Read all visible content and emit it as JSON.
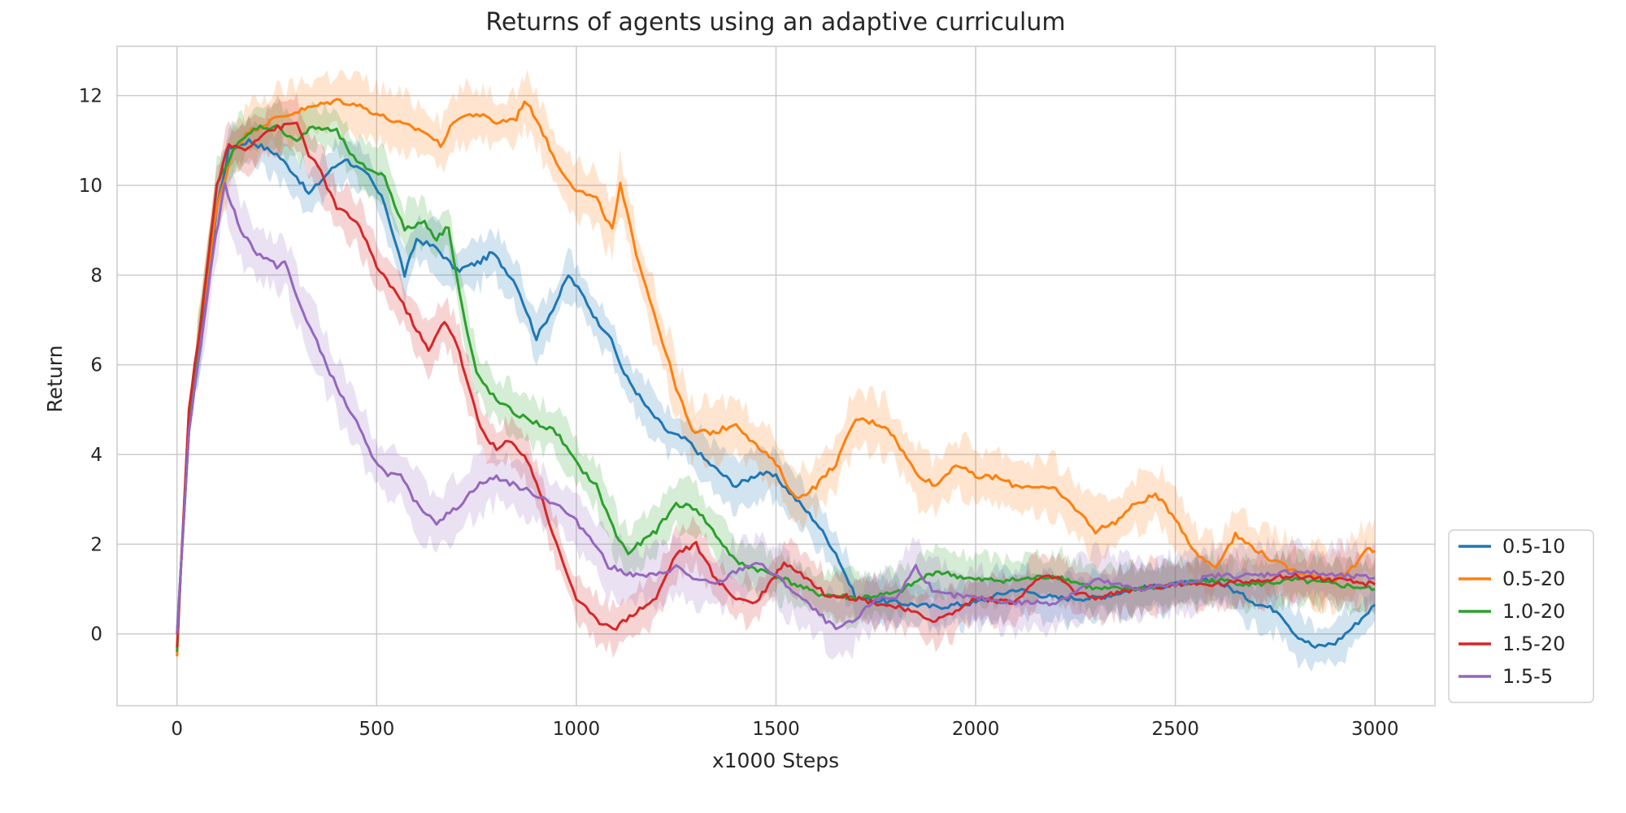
{
  "chart_data": {
    "type": "line",
    "title": "Returns of agents using an adaptive curriculum",
    "xlabel": "x1000 Steps",
    "ylabel": "Return",
    "xlim": [
      -150,
      3150
    ],
    "ylim": [
      -1.6,
      13.1
    ],
    "xticks": [
      0,
      500,
      1000,
      1500,
      2000,
      2500,
      3000
    ],
    "yticks": [
      0,
      2,
      4,
      6,
      8,
      10,
      12
    ],
    "grid": true,
    "legend_position": "lower-right-outside",
    "series": [
      {
        "name": "0.5-10",
        "color": "#1f77b4",
        "band": 0.5,
        "points": [
          [
            0,
            0
          ],
          [
            10,
            1.5
          ],
          [
            30,
            4.5
          ],
          [
            60,
            6.5
          ],
          [
            100,
            9.5
          ],
          [
            130,
            10.8
          ],
          [
            180,
            11.0
          ],
          [
            250,
            10.7
          ],
          [
            300,
            10.2
          ],
          [
            330,
            9.8
          ],
          [
            380,
            10.3
          ],
          [
            420,
            10.6
          ],
          [
            480,
            10.2
          ],
          [
            520,
            9.6
          ],
          [
            570,
            8.0
          ],
          [
            600,
            8.8
          ],
          [
            650,
            8.6
          ],
          [
            700,
            8.1
          ],
          [
            760,
            8.3
          ],
          [
            790,
            8.5
          ],
          [
            850,
            7.8
          ],
          [
            900,
            6.6
          ],
          [
            950,
            7.4
          ],
          [
            980,
            8.0
          ],
          [
            1020,
            7.5
          ],
          [
            1050,
            7.0
          ],
          [
            1080,
            6.7
          ],
          [
            1120,
            5.8
          ],
          [
            1180,
            5.0
          ],
          [
            1230,
            4.5
          ],
          [
            1280,
            4.3
          ],
          [
            1320,
            3.9
          ],
          [
            1400,
            3.3
          ],
          [
            1460,
            3.6
          ],
          [
            1500,
            3.5
          ],
          [
            1550,
            3.0
          ],
          [
            1600,
            2.5
          ],
          [
            1650,
            1.8
          ],
          [
            1700,
            0.8
          ],
          [
            1800,
            0.7
          ],
          [
            1900,
            0.6
          ],
          [
            2000,
            0.7
          ],
          [
            2100,
            1.0
          ],
          [
            2200,
            0.8
          ],
          [
            2300,
            0.8
          ],
          [
            2400,
            1.0
          ],
          [
            2500,
            1.1
          ],
          [
            2600,
            1.2
          ],
          [
            2700,
            0.7
          ],
          [
            2760,
            0.5
          ],
          [
            2800,
            0.0
          ],
          [
            2850,
            -0.3
          ],
          [
            2900,
            -0.2
          ],
          [
            2950,
            0.2
          ],
          [
            3000,
            0.65
          ]
        ]
      },
      {
        "name": "0.5-20",
        "color": "#ff7f0e",
        "band": 0.6,
        "points": [
          [
            0,
            -0.5
          ],
          [
            10,
            1.5
          ],
          [
            30,
            5
          ],
          [
            60,
            7
          ],
          [
            100,
            9.5
          ],
          [
            140,
            10.8
          ],
          [
            180,
            11.2
          ],
          [
            250,
            11.5
          ],
          [
            320,
            11.7
          ],
          [
            400,
            11.9
          ],
          [
            450,
            11.8
          ],
          [
            500,
            11.6
          ],
          [
            550,
            11.4
          ],
          [
            620,
            11.2
          ],
          [
            660,
            10.9
          ],
          [
            700,
            11.5
          ],
          [
            750,
            11.6
          ],
          [
            800,
            11.4
          ],
          [
            850,
            11.5
          ],
          [
            870,
            11.9
          ],
          [
            900,
            11.5
          ],
          [
            950,
            10.5
          ],
          [
            1000,
            9.9
          ],
          [
            1050,
            9.7
          ],
          [
            1090,
            9.0
          ],
          [
            1110,
            10.0
          ],
          [
            1150,
            8.5
          ],
          [
            1200,
            7.0
          ],
          [
            1250,
            5.5
          ],
          [
            1290,
            4.5
          ],
          [
            1350,
            4.5
          ],
          [
            1400,
            4.7
          ],
          [
            1450,
            4.2
          ],
          [
            1500,
            3.8
          ],
          [
            1550,
            3.0
          ],
          [
            1600,
            3.3
          ],
          [
            1650,
            3.8
          ],
          [
            1700,
            4.8
          ],
          [
            1750,
            4.7
          ],
          [
            1780,
            4.6
          ],
          [
            1850,
            3.6
          ],
          [
            1900,
            3.3
          ],
          [
            1950,
            3.8
          ],
          [
            2000,
            3.5
          ],
          [
            2050,
            3.5
          ],
          [
            2100,
            3.3
          ],
          [
            2150,
            3.3
          ],
          [
            2200,
            3.2
          ],
          [
            2250,
            2.8
          ],
          [
            2300,
            2.3
          ],
          [
            2350,
            2.5
          ],
          [
            2400,
            2.9
          ],
          [
            2450,
            3.1
          ],
          [
            2500,
            2.6
          ],
          [
            2550,
            1.8
          ],
          [
            2600,
            1.5
          ],
          [
            2650,
            2.2
          ],
          [
            2700,
            1.9
          ],
          [
            2750,
            1.6
          ],
          [
            2800,
            1.4
          ],
          [
            2850,
            1.3
          ],
          [
            2900,
            1.2
          ],
          [
            2950,
            1.5
          ],
          [
            2980,
            1.9
          ],
          [
            3000,
            1.85
          ]
        ]
      },
      {
        "name": "1.0-20",
        "color": "#2ca02c",
        "band": 0.5,
        "points": [
          [
            0,
            -0.4
          ],
          [
            10,
            1.5
          ],
          [
            30,
            4.5
          ],
          [
            60,
            7
          ],
          [
            100,
            10
          ],
          [
            140,
            10.8
          ],
          [
            200,
            11.3
          ],
          [
            250,
            11.3
          ],
          [
            300,
            11.0
          ],
          [
            340,
            11.3
          ],
          [
            400,
            11.2
          ],
          [
            450,
            10.5
          ],
          [
            520,
            10.2
          ],
          [
            570,
            9.0
          ],
          [
            620,
            9.2
          ],
          [
            650,
            8.8
          ],
          [
            680,
            9.1
          ],
          [
            700,
            8.0
          ],
          [
            720,
            7.0
          ],
          [
            750,
            5.8
          ],
          [
            800,
            5.2
          ],
          [
            850,
            4.9
          ],
          [
            900,
            4.7
          ],
          [
            950,
            4.5
          ],
          [
            1000,
            3.8
          ],
          [
            1050,
            3.3
          ],
          [
            1100,
            2.2
          ],
          [
            1130,
            1.8
          ],
          [
            1200,
            2.3
          ],
          [
            1250,
            2.9
          ],
          [
            1300,
            2.8
          ],
          [
            1350,
            2.2
          ],
          [
            1400,
            1.6
          ],
          [
            1500,
            1.3
          ],
          [
            1600,
            0.9
          ],
          [
            1700,
            0.8
          ],
          [
            1800,
            0.9
          ],
          [
            1900,
            1.4
          ],
          [
            2000,
            1.2
          ],
          [
            2100,
            1.2
          ],
          [
            2200,
            1.3
          ],
          [
            2300,
            1.0
          ],
          [
            2400,
            1.0
          ],
          [
            2500,
            1.1
          ],
          [
            2600,
            1.2
          ],
          [
            2700,
            1.1
          ],
          [
            2800,
            1.2
          ],
          [
            2900,
            1.1
          ],
          [
            3000,
            1.0
          ]
        ]
      },
      {
        "name": "1.5-20",
        "color": "#d62728",
        "band": 0.5,
        "points": [
          [
            0,
            -0.3
          ],
          [
            10,
            1.5
          ],
          [
            30,
            5
          ],
          [
            60,
            7
          ],
          [
            100,
            10
          ],
          [
            130,
            10.9
          ],
          [
            170,
            10.8
          ],
          [
            220,
            11.2
          ],
          [
            260,
            11.3
          ],
          [
            300,
            11.4
          ],
          [
            330,
            10.7
          ],
          [
            360,
            10.3
          ],
          [
            400,
            9.5
          ],
          [
            450,
            9.2
          ],
          [
            500,
            8.2
          ],
          [
            550,
            7.6
          ],
          [
            600,
            6.8
          ],
          [
            630,
            6.3
          ],
          [
            670,
            7.0
          ],
          [
            700,
            6.5
          ],
          [
            730,
            5.5
          ],
          [
            760,
            4.6
          ],
          [
            800,
            4.1
          ],
          [
            830,
            4.3
          ],
          [
            870,
            4.0
          ],
          [
            900,
            3.4
          ],
          [
            950,
            2.0
          ],
          [
            1000,
            0.8
          ],
          [
            1050,
            0.3
          ],
          [
            1100,
            0.15
          ],
          [
            1150,
            0.5
          ],
          [
            1200,
            0.8
          ],
          [
            1250,
            1.8
          ],
          [
            1300,
            2.0
          ],
          [
            1350,
            1.2
          ],
          [
            1400,
            0.8
          ],
          [
            1450,
            0.7
          ],
          [
            1520,
            1.6
          ],
          [
            1570,
            1.3
          ],
          [
            1620,
            0.9
          ],
          [
            1700,
            0.8
          ],
          [
            1800,
            0.6
          ],
          [
            1900,
            0.3
          ],
          [
            1950,
            0.5
          ],
          [
            2000,
            0.8
          ],
          [
            2100,
            0.7
          ],
          [
            2150,
            1.2
          ],
          [
            2200,
            1.3
          ],
          [
            2250,
            0.9
          ],
          [
            2300,
            0.8
          ],
          [
            2400,
            1.0
          ],
          [
            2500,
            1.1
          ],
          [
            2600,
            1.1
          ],
          [
            2700,
            1.2
          ],
          [
            2800,
            1.3
          ],
          [
            2900,
            1.2
          ],
          [
            3000,
            1.1
          ]
        ]
      },
      {
        "name": "1.5-5",
        "color": "#9467bd",
        "band": 0.6,
        "points": [
          [
            0,
            0
          ],
          [
            10,
            1.5
          ],
          [
            30,
            4.5
          ],
          [
            60,
            6.5
          ],
          [
            90,
            8.5
          ],
          [
            110,
            9.5
          ],
          [
            120,
            10.0
          ],
          [
            160,
            9.0
          ],
          [
            200,
            8.5
          ],
          [
            250,
            8.2
          ],
          [
            270,
            8.3
          ],
          [
            300,
            7.5
          ],
          [
            350,
            6.5
          ],
          [
            400,
            5.5
          ],
          [
            450,
            4.7
          ],
          [
            480,
            4.1
          ],
          [
            520,
            3.6
          ],
          [
            560,
            3.5
          ],
          [
            600,
            2.9
          ],
          [
            650,
            2.5
          ],
          [
            700,
            2.8
          ],
          [
            750,
            3.3
          ],
          [
            800,
            3.5
          ],
          [
            850,
            3.3
          ],
          [
            900,
            3.1
          ],
          [
            950,
            2.9
          ],
          [
            1000,
            2.5
          ],
          [
            1050,
            2.0
          ],
          [
            1080,
            1.5
          ],
          [
            1150,
            1.3
          ],
          [
            1200,
            1.3
          ],
          [
            1250,
            1.5
          ],
          [
            1300,
            1.2
          ],
          [
            1350,
            1.1
          ],
          [
            1400,
            1.4
          ],
          [
            1450,
            1.6
          ],
          [
            1500,
            1.3
          ],
          [
            1550,
            0.9
          ],
          [
            1600,
            0.5
          ],
          [
            1650,
            0.1
          ],
          [
            1700,
            0.3
          ],
          [
            1750,
            0.8
          ],
          [
            1800,
            0.8
          ],
          [
            1850,
            1.5
          ],
          [
            1900,
            0.9
          ],
          [
            2000,
            0.8
          ],
          [
            2100,
            0.7
          ],
          [
            2200,
            0.7
          ],
          [
            2300,
            1.2
          ],
          [
            2400,
            1.0
          ],
          [
            2500,
            1.1
          ],
          [
            2600,
            1.3
          ],
          [
            2700,
            1.3
          ],
          [
            2800,
            1.4
          ],
          [
            2900,
            1.3
          ],
          [
            3000,
            1.25
          ]
        ]
      }
    ]
  }
}
